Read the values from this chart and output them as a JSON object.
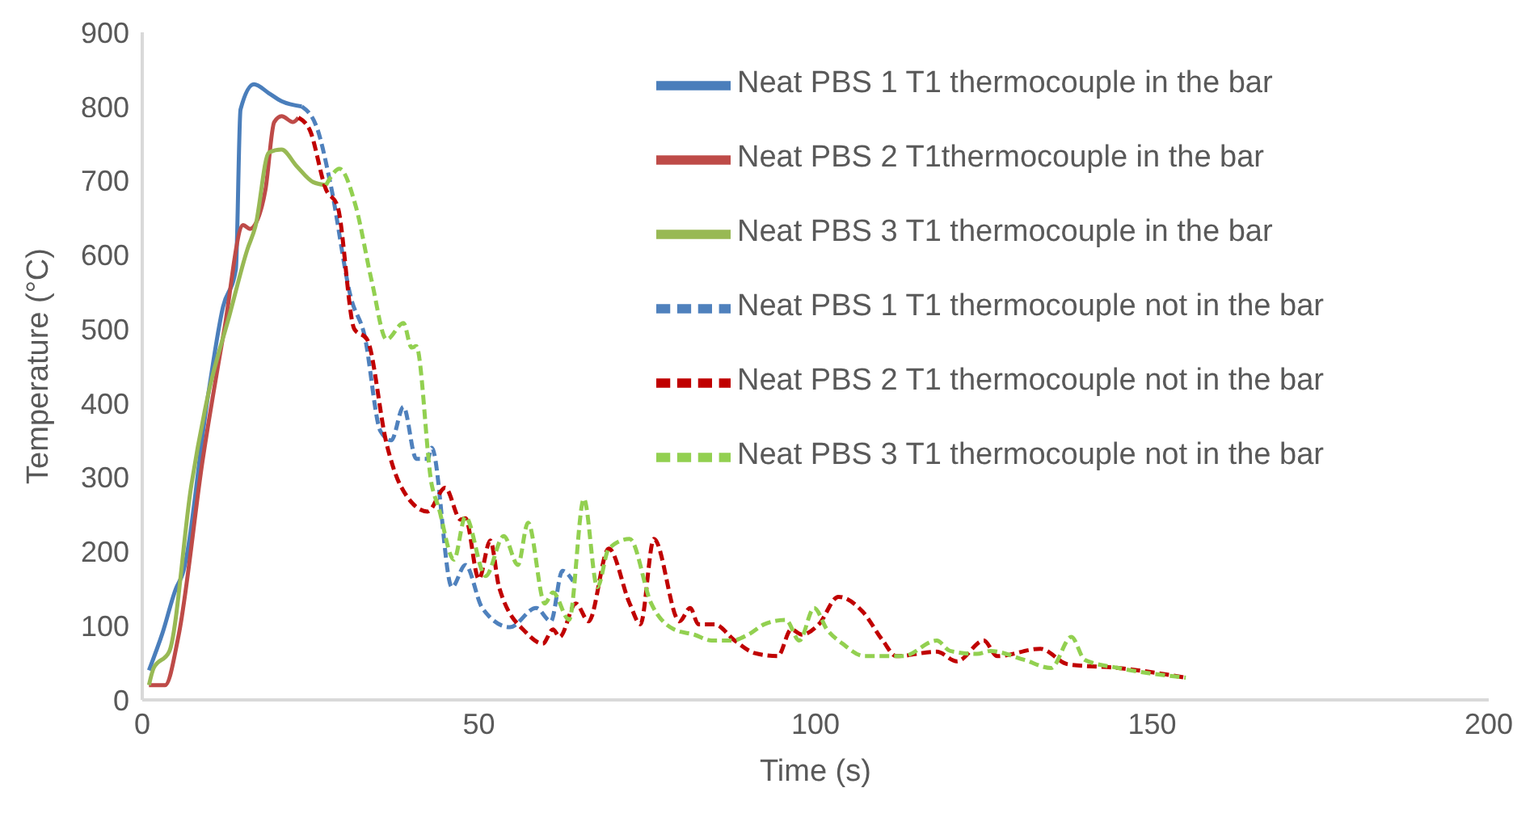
{
  "chart_data": {
    "type": "line",
    "xlabel": "Time (s)",
    "ylabel": "Temperature (°C)",
    "xlim": [
      0,
      200
    ],
    "xticks": [
      0,
      50,
      100,
      150,
      200
    ],
    "ylim": [
      0,
      900
    ],
    "yticks": [
      0,
      100,
      200,
      300,
      400,
      500,
      600,
      700,
      800,
      900
    ],
    "grid": false,
    "legend": "top right",
    "marker": "none",
    "series": [
      {
        "name": "Neat PBS 1 T1 thermocouple in the bar",
        "color": "#4a7ebb",
        "line_style": "solid",
        "x": [
          1,
          3,
          5,
          6,
          9.8,
          12,
          13.9,
          14.6,
          16.6,
          18.8,
          20.7,
          23.7
        ],
        "values": [
          40,
          90,
          150,
          170,
          412,
          530,
          580,
          796,
          830,
          818,
          807,
          800
        ]
      },
      {
        "name": "Neat PBS 2 T1thermocouple in the bar",
        "color": "#be4b48",
        "line_style": "solid",
        "x": [
          1,
          3.4,
          5.4,
          9,
          12.2,
          15,
          16,
          17,
          18.3,
          19.6,
          20.7,
          22.4,
          23.2
        ],
        "values": [
          20,
          20,
          87,
          325,
          500,
          640,
          635,
          645,
          688,
          779,
          787,
          779,
          785
        ]
      },
      {
        "name": "Neat PBS 3 T1 thermocouple in the bar",
        "color": "#98b954",
        "line_style": "solid",
        "x": [
          1,
          1.7,
          4,
          7.3,
          9.8,
          13,
          15.6,
          16.8,
          18.8,
          20.7,
          22.9,
          25.4,
          27.3
        ],
        "values": [
          20,
          43,
          65,
          290,
          412,
          520,
          607,
          638,
          738,
          742,
          720,
          698,
          694
        ]
      },
      {
        "name": "Neat PBS 1 T1 thermocouple not in the bar",
        "color": "#4f81bd",
        "line_style": "dashed",
        "x": [
          23.7,
          26,
          28,
          31,
          33,
          35.4,
          37,
          38.8,
          40.7,
          42.4,
          43,
          46,
          48,
          50.5,
          54.6,
          58.5,
          60.7,
          62.4,
          64
        ],
        "values": [
          800,
          770,
          694,
          542,
          492,
          362,
          350,
          395,
          325,
          325,
          340,
          152,
          182,
          124,
          98,
          124,
          106,
          174,
          160
        ]
      },
      {
        "name": "Neat PBS 2 T1 thermocouple not in the bar",
        "color": "#c00000",
        "line_style": "dashed",
        "x": [
          23.2,
          24.9,
          27.3,
          29,
          31.5,
          33.4,
          36.3,
          38.3,
          42.4,
          45,
          47.3,
          48,
          50,
          51.7,
          53,
          57,
          59.5,
          61,
          62,
          64.4,
          66.3,
          69.3,
          72.4,
          74,
          76,
          79.8,
          81.4,
          82.6,
          85,
          88,
          91,
          94.4,
          96.4,
          98,
          100.5,
          103.4,
          107,
          110,
          112,
          118,
          121,
          125,
          127,
          133.4,
          137.5,
          145,
          155
        ],
        "values": [
          785,
          768,
          688,
          666,
          500,
          486,
          345,
          290,
          254,
          286,
          243,
          245,
          163,
          215,
          152,
          91,
          76,
          95,
          85,
          130,
          106,
          204,
          130,
          102,
          217,
          106,
          124,
          102,
          102,
          80,
          63,
          59,
          95,
          88,
          102,
          139,
          119,
          80,
          59,
          65,
          52,
          80,
          59,
          69,
          48,
          43,
          30
        ]
      },
      {
        "name": "Neat PBS 3 T1 thermocouple not in the bar",
        "color": "#92d050",
        "line_style": "dashed",
        "x": [
          27.3,
          28,
          29.3,
          31.7,
          34.1,
          36.3,
          38.8,
          40,
          40.7,
          43,
          44,
          46.3,
          48,
          51,
          53.7,
          55.8,
          57.3,
          59.8,
          61,
          63.4,
          65.6,
          67.6,
          69.3,
          72.4,
          75.6,
          79,
          82,
          84.6,
          87.6,
          90,
          92.4,
          95.6,
          97.6,
          99.8,
          101.7,
          104,
          107.3,
          113,
          118,
          120,
          124,
          126,
          131,
          135,
          138,
          140,
          145,
          155
        ],
        "values": [
          694,
          705,
          716,
          666,
          564,
          486,
          508,
          475,
          477,
          290,
          260,
          189,
          247,
          167,
          221,
          182,
          239,
          130,
          145,
          108,
          271,
          152,
          204,
          217,
          130,
          95,
          88,
          80,
          80,
          88,
          102,
          108,
          80,
          124,
          95,
          76,
          59,
          59,
          80,
          66,
          62,
          66,
          54,
          43,
          85,
          54,
          43,
          30
        ]
      }
    ]
  }
}
